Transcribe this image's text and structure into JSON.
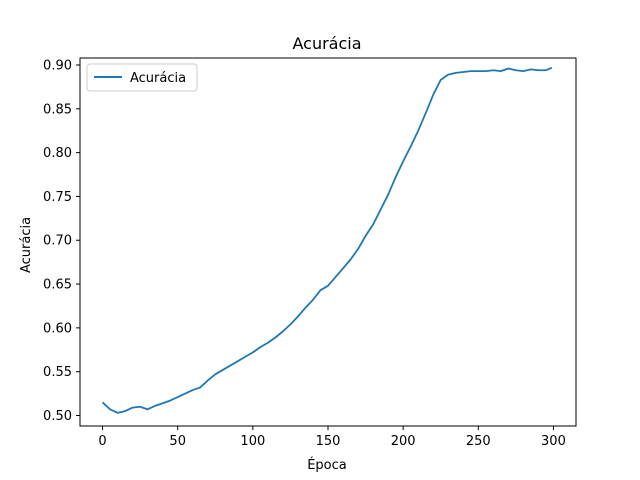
{
  "chart_data": {
    "type": "line",
    "title": "Acurácia",
    "xlabel": "Época",
    "ylabel": "Acurácia",
    "xlim": [
      -15,
      315
    ],
    "ylim": [
      0.488,
      0.908
    ],
    "x_ticks": [
      0,
      50,
      100,
      150,
      200,
      250,
      300
    ],
    "x_tick_labels": [
      "0",
      "50",
      "100",
      "150",
      "200",
      "250",
      "300"
    ],
    "y_ticks": [
      0.5,
      0.55,
      0.6,
      0.65,
      0.7,
      0.75,
      0.8,
      0.85,
      0.9
    ],
    "y_tick_labels": [
      "0.50",
      "0.55",
      "0.60",
      "0.65",
      "0.70",
      "0.75",
      "0.80",
      "0.85",
      "0.90"
    ],
    "grid": false,
    "legend_position": "top-left",
    "series": [
      {
        "name": "Acurácia",
        "color": "#1f77b4",
        "x": [
          0,
          5,
          10,
          15,
          20,
          25,
          30,
          35,
          40,
          45,
          50,
          55,
          60,
          65,
          70,
          75,
          80,
          85,
          90,
          95,
          100,
          105,
          110,
          115,
          120,
          125,
          130,
          135,
          140,
          145,
          150,
          155,
          160,
          165,
          170,
          175,
          180,
          185,
          190,
          195,
          200,
          205,
          210,
          215,
          220,
          225,
          230,
          235,
          240,
          245,
          250,
          255,
          260,
          265,
          270,
          275,
          280,
          285,
          290,
          295,
          299
        ],
        "y": [
          0.515,
          0.507,
          0.503,
          0.505,
          0.509,
          0.51,
          0.507,
          0.511,
          0.514,
          0.517,
          0.521,
          0.525,
          0.529,
          0.532,
          0.54,
          0.547,
          0.552,
          0.557,
          0.562,
          0.567,
          0.572,
          0.578,
          0.583,
          0.589,
          0.596,
          0.604,
          0.613,
          0.623,
          0.632,
          0.643,
          0.648,
          0.658,
          0.668,
          0.678,
          0.69,
          0.705,
          0.718,
          0.735,
          0.752,
          0.772,
          0.79,
          0.807,
          0.825,
          0.845,
          0.866,
          0.883,
          0.889,
          0.891,
          0.892,
          0.893,
          0.893,
          0.893,
          0.894,
          0.893,
          0.896,
          0.894,
          0.893,
          0.895,
          0.894,
          0.894,
          0.897
        ]
      }
    ]
  }
}
